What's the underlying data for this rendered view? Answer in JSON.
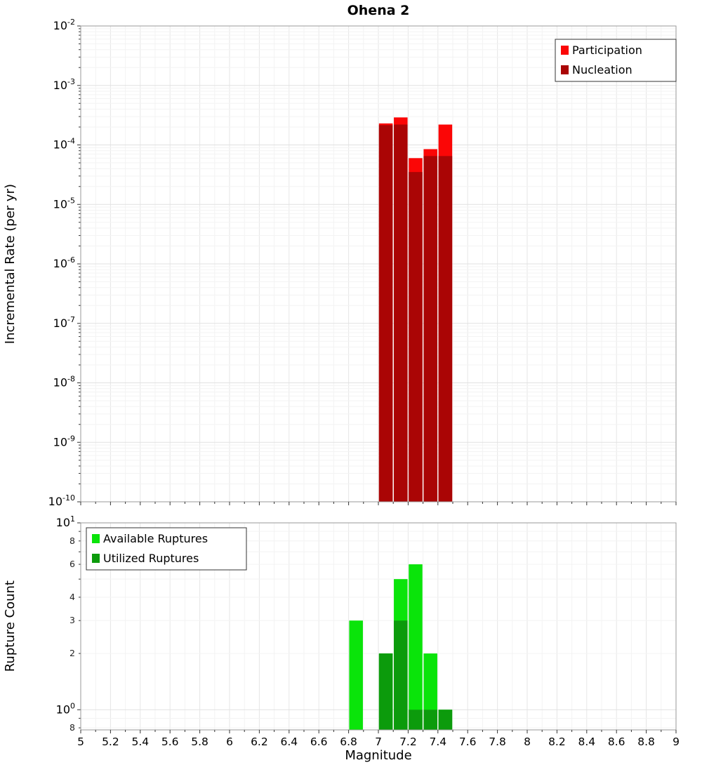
{
  "title": "Ohena 2",
  "chart_data": [
    {
      "type": "bar",
      "name": "incremental-rate-chart",
      "title": "Ohena 2",
      "ylabel": "Incremental Rate (per yr)",
      "yscale": "log",
      "ylim": [
        1e-10,
        0.01
      ],
      "xlim": [
        5,
        9
      ],
      "grid": true,
      "legend_position": "top-right",
      "bin_width": 0.1,
      "bin_centers": [
        7.05,
        7.15,
        7.25,
        7.35,
        7.45
      ],
      "series": [
        {
          "name": "Participation",
          "color": "#fb0606",
          "values": [
            0.00023,
            0.00029,
            6e-05,
            8.5e-05,
            0.00022
          ]
        },
        {
          "name": "Nucleation",
          "color": "#aa0505",
          "values": [
            0.000215,
            0.00022,
            3.5e-05,
            6.5e-05,
            6.5e-05
          ]
        }
      ],
      "yticks": [
        {
          "v": 0.01,
          "exp": "-2"
        },
        {
          "v": 0.001,
          "exp": "-3"
        },
        {
          "v": 0.0001,
          "exp": "-4"
        },
        {
          "v": 1e-05,
          "exp": "-5"
        },
        {
          "v": 1e-06,
          "exp": "-6"
        },
        {
          "v": 1e-07,
          "exp": "-7"
        },
        {
          "v": 1e-08,
          "exp": "-8"
        },
        {
          "v": 1e-09,
          "exp": "-9"
        },
        {
          "v": 1e-10,
          "exp": "-10"
        }
      ],
      "xticks": [
        5,
        5.2,
        5.4,
        5.6,
        5.8,
        6,
        6.2,
        6.4,
        6.6,
        6.8,
        7,
        7.2,
        7.4,
        7.6,
        7.8,
        8,
        8.2,
        8.4,
        8.6,
        8.8,
        9
      ],
      "xtick_labels": [
        "5",
        "5.2",
        "5.4",
        "5.6",
        "5.8",
        "6",
        "6.2",
        "6.4",
        "6.6",
        "6.8",
        "7",
        "7.2",
        "7.4",
        "7.6",
        "7.8",
        "8",
        "8.2",
        "8.4",
        "8.6",
        "8.8",
        "9"
      ],
      "show_x_labels": false
    },
    {
      "type": "bar",
      "name": "rupture-count-chart",
      "ylabel": "Rupture Count",
      "xlabel": "Magnitude",
      "yscale": "log",
      "ylim": [
        0.78,
        10
      ],
      "xlim": [
        5,
        9
      ],
      "grid": true,
      "legend_position": "top-left",
      "bin_width": 0.1,
      "bin_centers": [
        6.85,
        7.05,
        7.15,
        7.25,
        7.35,
        7.45
      ],
      "series": [
        {
          "name": "Available Ruptures",
          "color": "#0ae40a",
          "values": [
            3,
            2,
            5,
            6,
            2,
            1
          ]
        },
        {
          "name": "Utilized Ruptures",
          "color": "#0c9b0c",
          "values": [
            0,
            2,
            3,
            1,
            1,
            1
          ]
        }
      ],
      "yticks": [
        {
          "v": 10,
          "exp": "1"
        },
        {
          "v": 8,
          "label": "8"
        },
        {
          "v": 6,
          "label": "6"
        },
        {
          "v": 4,
          "label": "4"
        },
        {
          "v": 3,
          "label": "3"
        },
        {
          "v": 2,
          "label": "2"
        },
        {
          "v": 1,
          "exp": "0"
        },
        {
          "v": 0.8,
          "label": "8"
        }
      ],
      "xticks": [
        5,
        5.2,
        5.4,
        5.6,
        5.8,
        6,
        6.2,
        6.4,
        6.6,
        6.8,
        7,
        7.2,
        7.4,
        7.6,
        7.8,
        8,
        8.2,
        8.4,
        8.6,
        8.8,
        9
      ],
      "xtick_labels": [
        "5",
        "5.2",
        "5.4",
        "5.6",
        "5.8",
        "6",
        "6.2",
        "6.4",
        "6.6",
        "6.8",
        "7",
        "7.2",
        "7.4",
        "7.6",
        "7.8",
        "8",
        "8.2",
        "8.4",
        "8.6",
        "8.8",
        "9"
      ],
      "show_x_labels": true
    }
  ]
}
